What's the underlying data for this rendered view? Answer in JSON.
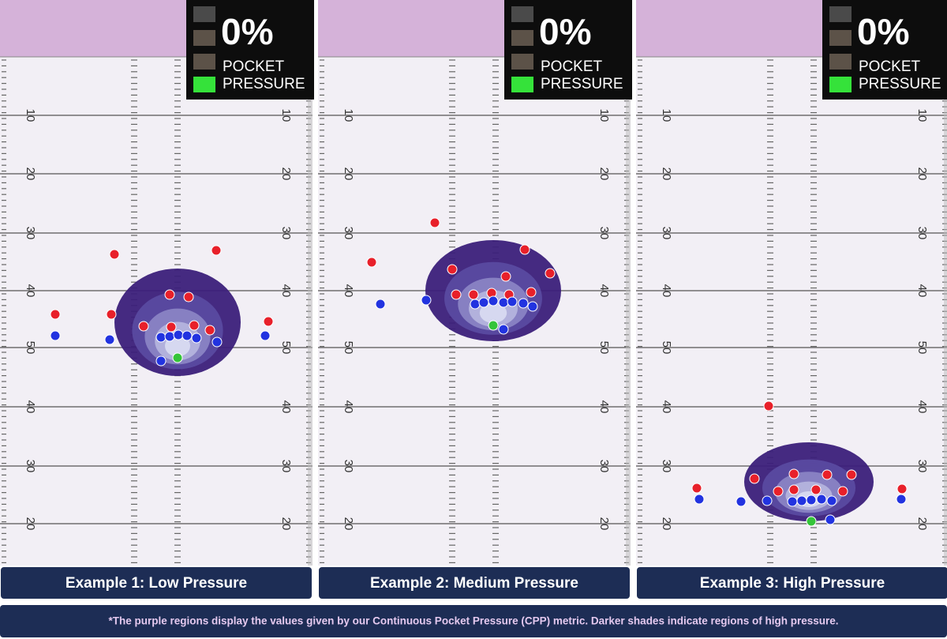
{
  "panels": [
    {
      "percent": "0%",
      "legend": [
        "POCKET",
        "PRESSURE"
      ],
      "caption": "Example 1: Low Pressure"
    },
    {
      "percent": "0%",
      "legend": [
        "POCKET",
        "PRESSURE"
      ],
      "caption": "Example 2: Medium Pressure"
    },
    {
      "percent": "0%",
      "legend": [
        "POCKET",
        "PRESSURE"
      ],
      "caption": "Example 3: High Pressure"
    }
  ],
  "yard_numbers": [
    "10",
    "20",
    "30",
    "40",
    "50",
    "40",
    "30",
    "20"
  ],
  "footnote": "*The purple regions display the values given by our Continuous Pocket Pressure (CPP) metric. Darker shades indicate regions of high pressure."
}
